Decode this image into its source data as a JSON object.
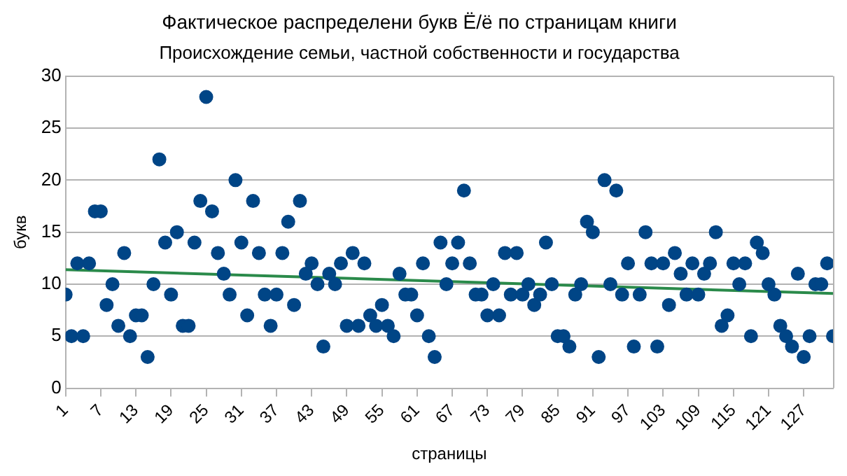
{
  "chart_data": {
    "type": "scatter",
    "title": "Фактическое распределени букв Ё/ё по страницам книги",
    "subtitle": "Происхождение семьи, частной собственности и государства",
    "xlabel": "страницы",
    "ylabel": "букв",
    "x": [
      1,
      2,
      3,
      4,
      5,
      6,
      7,
      8,
      9,
      10,
      11,
      12,
      13,
      14,
      15,
      16,
      17,
      18,
      19,
      20,
      21,
      22,
      23,
      24,
      25,
      26,
      27,
      28,
      29,
      30,
      31,
      32,
      33,
      34,
      35,
      36,
      37,
      38,
      39,
      40,
      41,
      42,
      43,
      44,
      45,
      46,
      47,
      48,
      49,
      50,
      51,
      52,
      53,
      54,
      55,
      56,
      57,
      58,
      59,
      60,
      61,
      62,
      63,
      64,
      65,
      66,
      67,
      68,
      69,
      70,
      71,
      72,
      73,
      74,
      75,
      76,
      77,
      78,
      79,
      80,
      81,
      82,
      83,
      84,
      85,
      86,
      87,
      88,
      89,
      90,
      91,
      92,
      93,
      94,
      95,
      96,
      97,
      98,
      99,
      100,
      101,
      102,
      103,
      104,
      105,
      106,
      107,
      108,
      109,
      110,
      111,
      112,
      113,
      114,
      115,
      116,
      117,
      118,
      119,
      120,
      121,
      122,
      123,
      124,
      125,
      126,
      127,
      128,
      129,
      130,
      131,
      132
    ],
    "series": [
      {
        "color": "#004586",
        "marker": "circle",
        "values": [
          9,
          5,
          12,
          5,
          12,
          17,
          17,
          8,
          10,
          6,
          13,
          5,
          7,
          7,
          3,
          10,
          22,
          14,
          9,
          15,
          6,
          6,
          14,
          18,
          28,
          17,
          13,
          11,
          9,
          20,
          14,
          7,
          18,
          13,
          9,
          6,
          9,
          13,
          16,
          8,
          18,
          11,
          12,
          10,
          4,
          11,
          10,
          12,
          6,
          13,
          6,
          12,
          7,
          6,
          8,
          6,
          5,
          11,
          9,
          9,
          7,
          12,
          5,
          3,
          14,
          10,
          12,
          14,
          19,
          12,
          9,
          9,
          7,
          10,
          7,
          13,
          9,
          13,
          9,
          10,
          8,
          9,
          14,
          10,
          5,
          5,
          4,
          9,
          10,
          16,
          15,
          3,
          20,
          10,
          19,
          9,
          12,
          4,
          9,
          15,
          12,
          4,
          12,
          8,
          13,
          11,
          9,
          12,
          9,
          11,
          12,
          15,
          6,
          7,
          12,
          10,
          12,
          5,
          14,
          13,
          10,
          9,
          6,
          5,
          4,
          11,
          3,
          5,
          10,
          10,
          12,
          5
        ]
      },
      {
        "type": "line",
        "marker": "none",
        "color": "#2a8a4a",
        "x": [
          1,
          132
        ],
        "values": [
          11.4,
          9.1
        ]
      }
    ],
    "xlim": [
      1,
      132
    ],
    "xticks": [
      1,
      7,
      13,
      19,
      25,
      31,
      37,
      43,
      49,
      55,
      61,
      67,
      73,
      79,
      85,
      91,
      97,
      103,
      109,
      115,
      121,
      127
    ],
    "ylim": [
      0,
      30
    ],
    "yticks": [
      0,
      5,
      10,
      15,
      20,
      25,
      30
    ],
    "grid": "y",
    "legend": false
  }
}
